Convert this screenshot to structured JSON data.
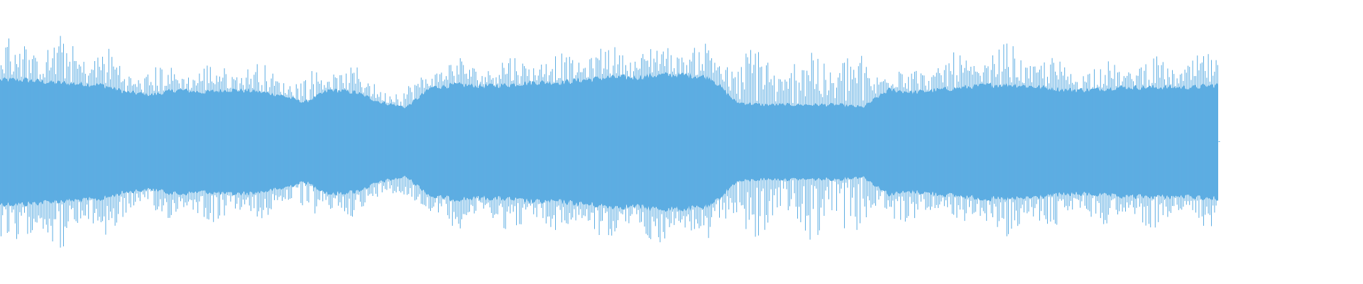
{
  "waveform": {
    "color": "#5dade2",
    "background": "#ffffff",
    "duration_fraction_drawn": 0.894,
    "envelope": [
      0.86,
      0.9,
      0.88,
      0.85,
      0.82,
      0.65,
      0.62,
      0.66,
      0.64,
      0.68,
      0.66,
      0.6,
      0.55,
      0.68,
      0.62,
      0.5,
      0.45,
      0.68,
      0.7,
      0.68,
      0.72,
      0.75,
      0.72,
      0.78,
      0.8,
      0.8,
      0.82,
      0.84,
      0.82,
      0.8,
      0.88,
      0.72,
      0.92,
      0.82,
      0.74,
      0.7,
      0.66,
      0.7,
      0.74,
      0.76,
      0.84,
      0.72,
      0.66,
      0.66,
      0.68,
      0.7,
      0.7,
      0.7,
      0.76
    ],
    "core_envelope": [
      0.5,
      0.5,
      0.48,
      0.47,
      0.46,
      0.4,
      0.38,
      0.42,
      0.4,
      0.42,
      0.41,
      0.38,
      0.32,
      0.42,
      0.4,
      0.32,
      0.28,
      0.44,
      0.46,
      0.45,
      0.46,
      0.48,
      0.48,
      0.5,
      0.52,
      0.52,
      0.54,
      0.54,
      0.52,
      0.32,
      0.3,
      0.3,
      0.3,
      0.3,
      0.28,
      0.42,
      0.4,
      0.42,
      0.44,
      0.46,
      0.46,
      0.44,
      0.42,
      0.42,
      0.44,
      0.44,
      0.44,
      0.44,
      0.46
    ]
  }
}
